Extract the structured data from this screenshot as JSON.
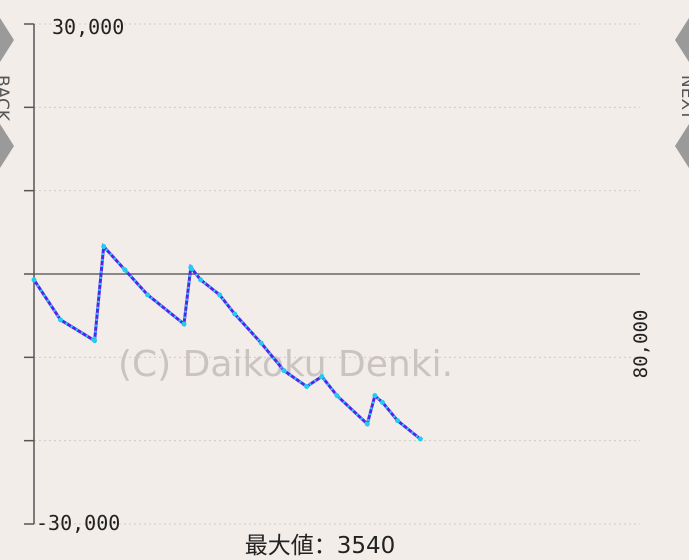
{
  "nav": {
    "back_label": "BACK",
    "next_label": "NEXT"
  },
  "chart_data": {
    "type": "line",
    "ylim": [
      -30000,
      30000
    ],
    "y_tick_labels": [
      "30,000",
      "-30,000"
    ],
    "x_max_label": "80,000",
    "watermark": "(C) Daikoku Denki.",
    "caption_label": "最大値：",
    "caption_value": "3540",
    "grid": true,
    "colors": {
      "line": "#5522ee",
      "points": "#22ccee",
      "zero_line": "#666666",
      "grid": "#cccccc"
    },
    "series": [
      {
        "x": [
          0,
          3500,
          8000,
          9200,
          12000,
          15000,
          19800,
          20700,
          22000,
          24500,
          26500,
          30000,
          33000,
          36000,
          38000,
          40000,
          44000,
          45000,
          46000,
          48000,
          51000
        ],
        "values": [
          -700,
          -5500,
          -8000,
          3300,
          500,
          -2500,
          -6000,
          800,
          -700,
          -2500,
          -4800,
          -8300,
          -11600,
          -13500,
          -12300,
          -14600,
          -18000,
          -14600,
          -15400,
          -17600,
          -19800
        ]
      }
    ]
  }
}
